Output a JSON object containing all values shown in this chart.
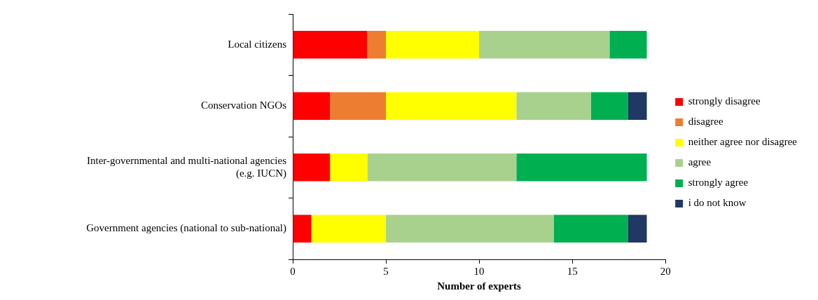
{
  "chart_data": {
    "type": "bar",
    "orientation": "horizontal",
    "stacked": true,
    "xlabel": "Number of experts",
    "categories": [
      "Local citizens",
      "Conservation NGOs",
      "Inter-governmental and multi-national agencies (e.g. IUCN)",
      "Government agencies (national to sub-national)"
    ],
    "series": [
      {
        "name": "strongly disagree",
        "color": "#ff0000",
        "values": [
          4,
          2,
          2,
          1
        ]
      },
      {
        "name": "disagree",
        "color": "#ed7d31",
        "values": [
          1,
          3,
          0,
          0
        ]
      },
      {
        "name": "neither agree nor disagree",
        "color": "#ffff00",
        "values": [
          5,
          7,
          2,
          4
        ]
      },
      {
        "name": "agree",
        "color": "#a9d18e",
        "values": [
          7,
          4,
          8,
          9
        ]
      },
      {
        "name": "strongly agree",
        "color": "#00b050",
        "values": [
          2,
          2,
          7,
          4
        ]
      },
      {
        "name": "i do not know",
        "color": "#203864",
        "values": [
          0,
          1,
          0,
          1
        ]
      }
    ],
    "xlim": [
      0,
      20
    ],
    "xticks": [
      0,
      5,
      10,
      15,
      20
    ],
    "grid": false,
    "legend": "right"
  }
}
